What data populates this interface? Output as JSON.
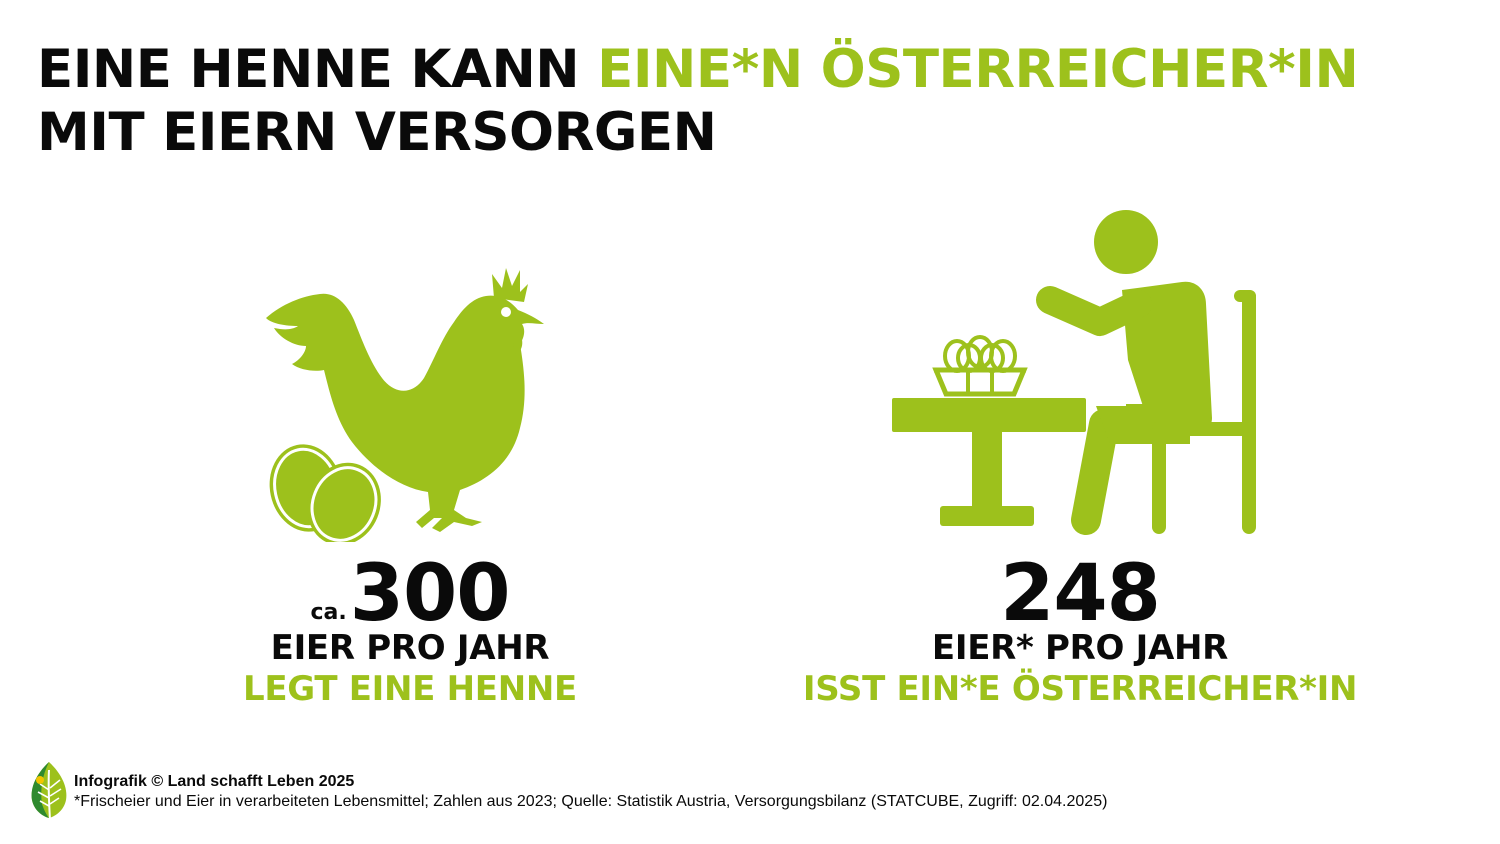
{
  "headline": {
    "line1_black": "EINE HENNE KANN ",
    "line1_green": "EINE*N ÖSTERREICHER*IN",
    "line2": "MIT EIERN VERSORGEN"
  },
  "left_stat": {
    "prefix": "ca.",
    "value": "300",
    "line1": "EIER PRO JAHR",
    "line2": "LEGT EINE HENNE"
  },
  "right_stat": {
    "value": "248",
    "line1": "EIER* PRO JAHR",
    "line2": "ISST EIN*E ÖSTERREICHER*IN"
  },
  "footer": {
    "credit": "Infografik © Land schafft Leben 2025",
    "source": "*Frischeier und Eier in verarbeiteten Lebensmittel; Zahlen aus 2023; Quelle: Statistik Austria, Versorgungsbilanz (STATCUBE, Zugriff: 02.04.2025)"
  },
  "colors": {
    "accent": "#9dc11c",
    "text": "#0a0a0a",
    "background": "#ffffff"
  },
  "icons": [
    "hen-with-eggs-icon",
    "person-eating-at-table-icon",
    "leaf-logo-icon"
  ]
}
